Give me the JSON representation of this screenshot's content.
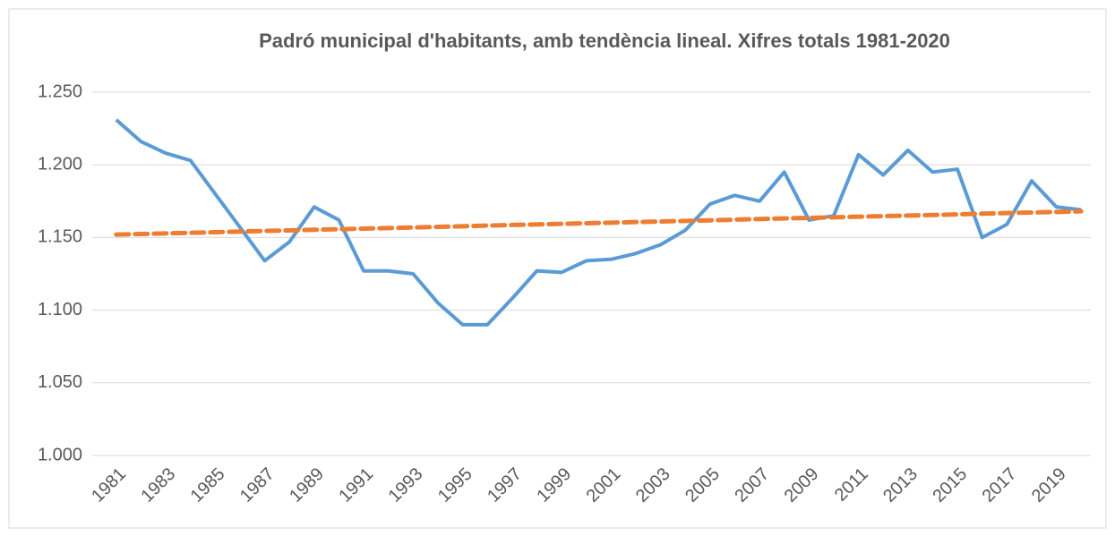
{
  "chart_data": {
    "type": "line",
    "title": "Padró municipal d'habitants, amb tendència lineal. Xifres totals 1981-2020",
    "categories": [
      "1981",
      null,
      "1983",
      null,
      "1985",
      null,
      "1987",
      null,
      "1989",
      null,
      "1991",
      null,
      "1993",
      null,
      "1995",
      null,
      "1997",
      null,
      "1999",
      null,
      "2001",
      null,
      "2003",
      null,
      "2005",
      null,
      "2007",
      null,
      "2009",
      null,
      "2011",
      null,
      "2013",
      null,
      "2015",
      null,
      "2017",
      null,
      "2019",
      null
    ],
    "series": [
      {
        "color": "#5b9bd5",
        "values": [
          1231,
          1216,
          1208,
          1203,
          1180,
          1157,
          1134,
          1147,
          1171,
          1162,
          1127,
          1127,
          1125,
          1105,
          1090,
          1090,
          1108,
          1127,
          1126,
          1134,
          1135,
          1139,
          1145,
          1155,
          1173,
          1179,
          1175,
          1195,
          1162,
          1165,
          1207,
          1193,
          1210,
          1195,
          1197,
          1150,
          1159,
          1189,
          1171,
          1169
        ]
      },
      {
        "color": "#ed7d31",
        "dashed": true,
        "values": [
          1152.0,
          1152.4,
          1152.8,
          1153.2,
          1153.6,
          1154.1,
          1154.5,
          1154.9,
          1155.3,
          1155.7,
          1156.1,
          1156.5,
          1156.9,
          1157.3,
          1157.7,
          1158.2,
          1158.6,
          1159.0,
          1159.4,
          1159.8,
          1160.2,
          1160.6,
          1161.0,
          1161.4,
          1161.8,
          1162.3,
          1162.7,
          1163.1,
          1163.5,
          1163.9,
          1164.3,
          1164.7,
          1165.1,
          1165.5,
          1165.9,
          1166.4,
          1166.8,
          1167.2,
          1167.6,
          1168.0
        ]
      }
    ],
    "ylim": [
      1000,
      1250
    ],
    "yticks": [
      {
        "value": 1000,
        "label": "1.000"
      },
      {
        "value": 1050,
        "label": "1.050"
      },
      {
        "value": 1100,
        "label": "1.100"
      },
      {
        "value": 1150,
        "label": "1.150"
      },
      {
        "value": 1200,
        "label": "1.200"
      },
      {
        "value": 1250,
        "label": "1.250"
      }
    ],
    "grid": true
  }
}
